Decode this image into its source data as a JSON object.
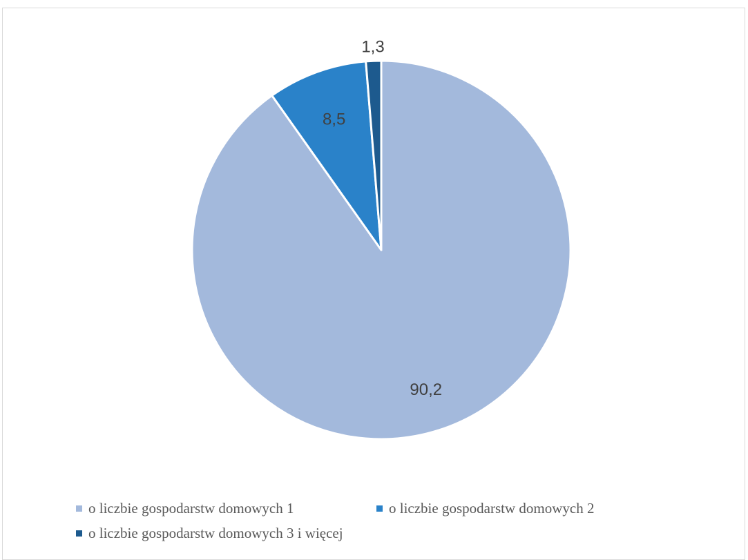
{
  "chart_data": {
    "type": "pie",
    "title": "",
    "slices": [
      {
        "name": "o liczbie gospodarstw domowych 1",
        "value": 90.2,
        "label": "90,2",
        "color": "#a3b9dc"
      },
      {
        "name": "o liczbie gospodarstw domowych 2",
        "value": 8.5,
        "label": "8,5",
        "color": "#2a82c9"
      },
      {
        "name": "o liczbie gospodarstw domowych 3 i więcej",
        "value": 1.3,
        "label": "1,3",
        "color": "#1d5a8e"
      }
    ],
    "legend_position": "bottom",
    "slice_border_color": "#ffffff",
    "label_color": "#404040"
  },
  "legend": {
    "items": [
      {
        "label": "o liczbie gospodarstw domowych 1",
        "color": "#a3b9dc"
      },
      {
        "label": "o liczbie gospodarstw domowych 2",
        "color": "#2a82c9"
      },
      {
        "label": "o liczbie gospodarstw domowych 3 i więcej",
        "color": "#1d5a8e"
      }
    ]
  }
}
